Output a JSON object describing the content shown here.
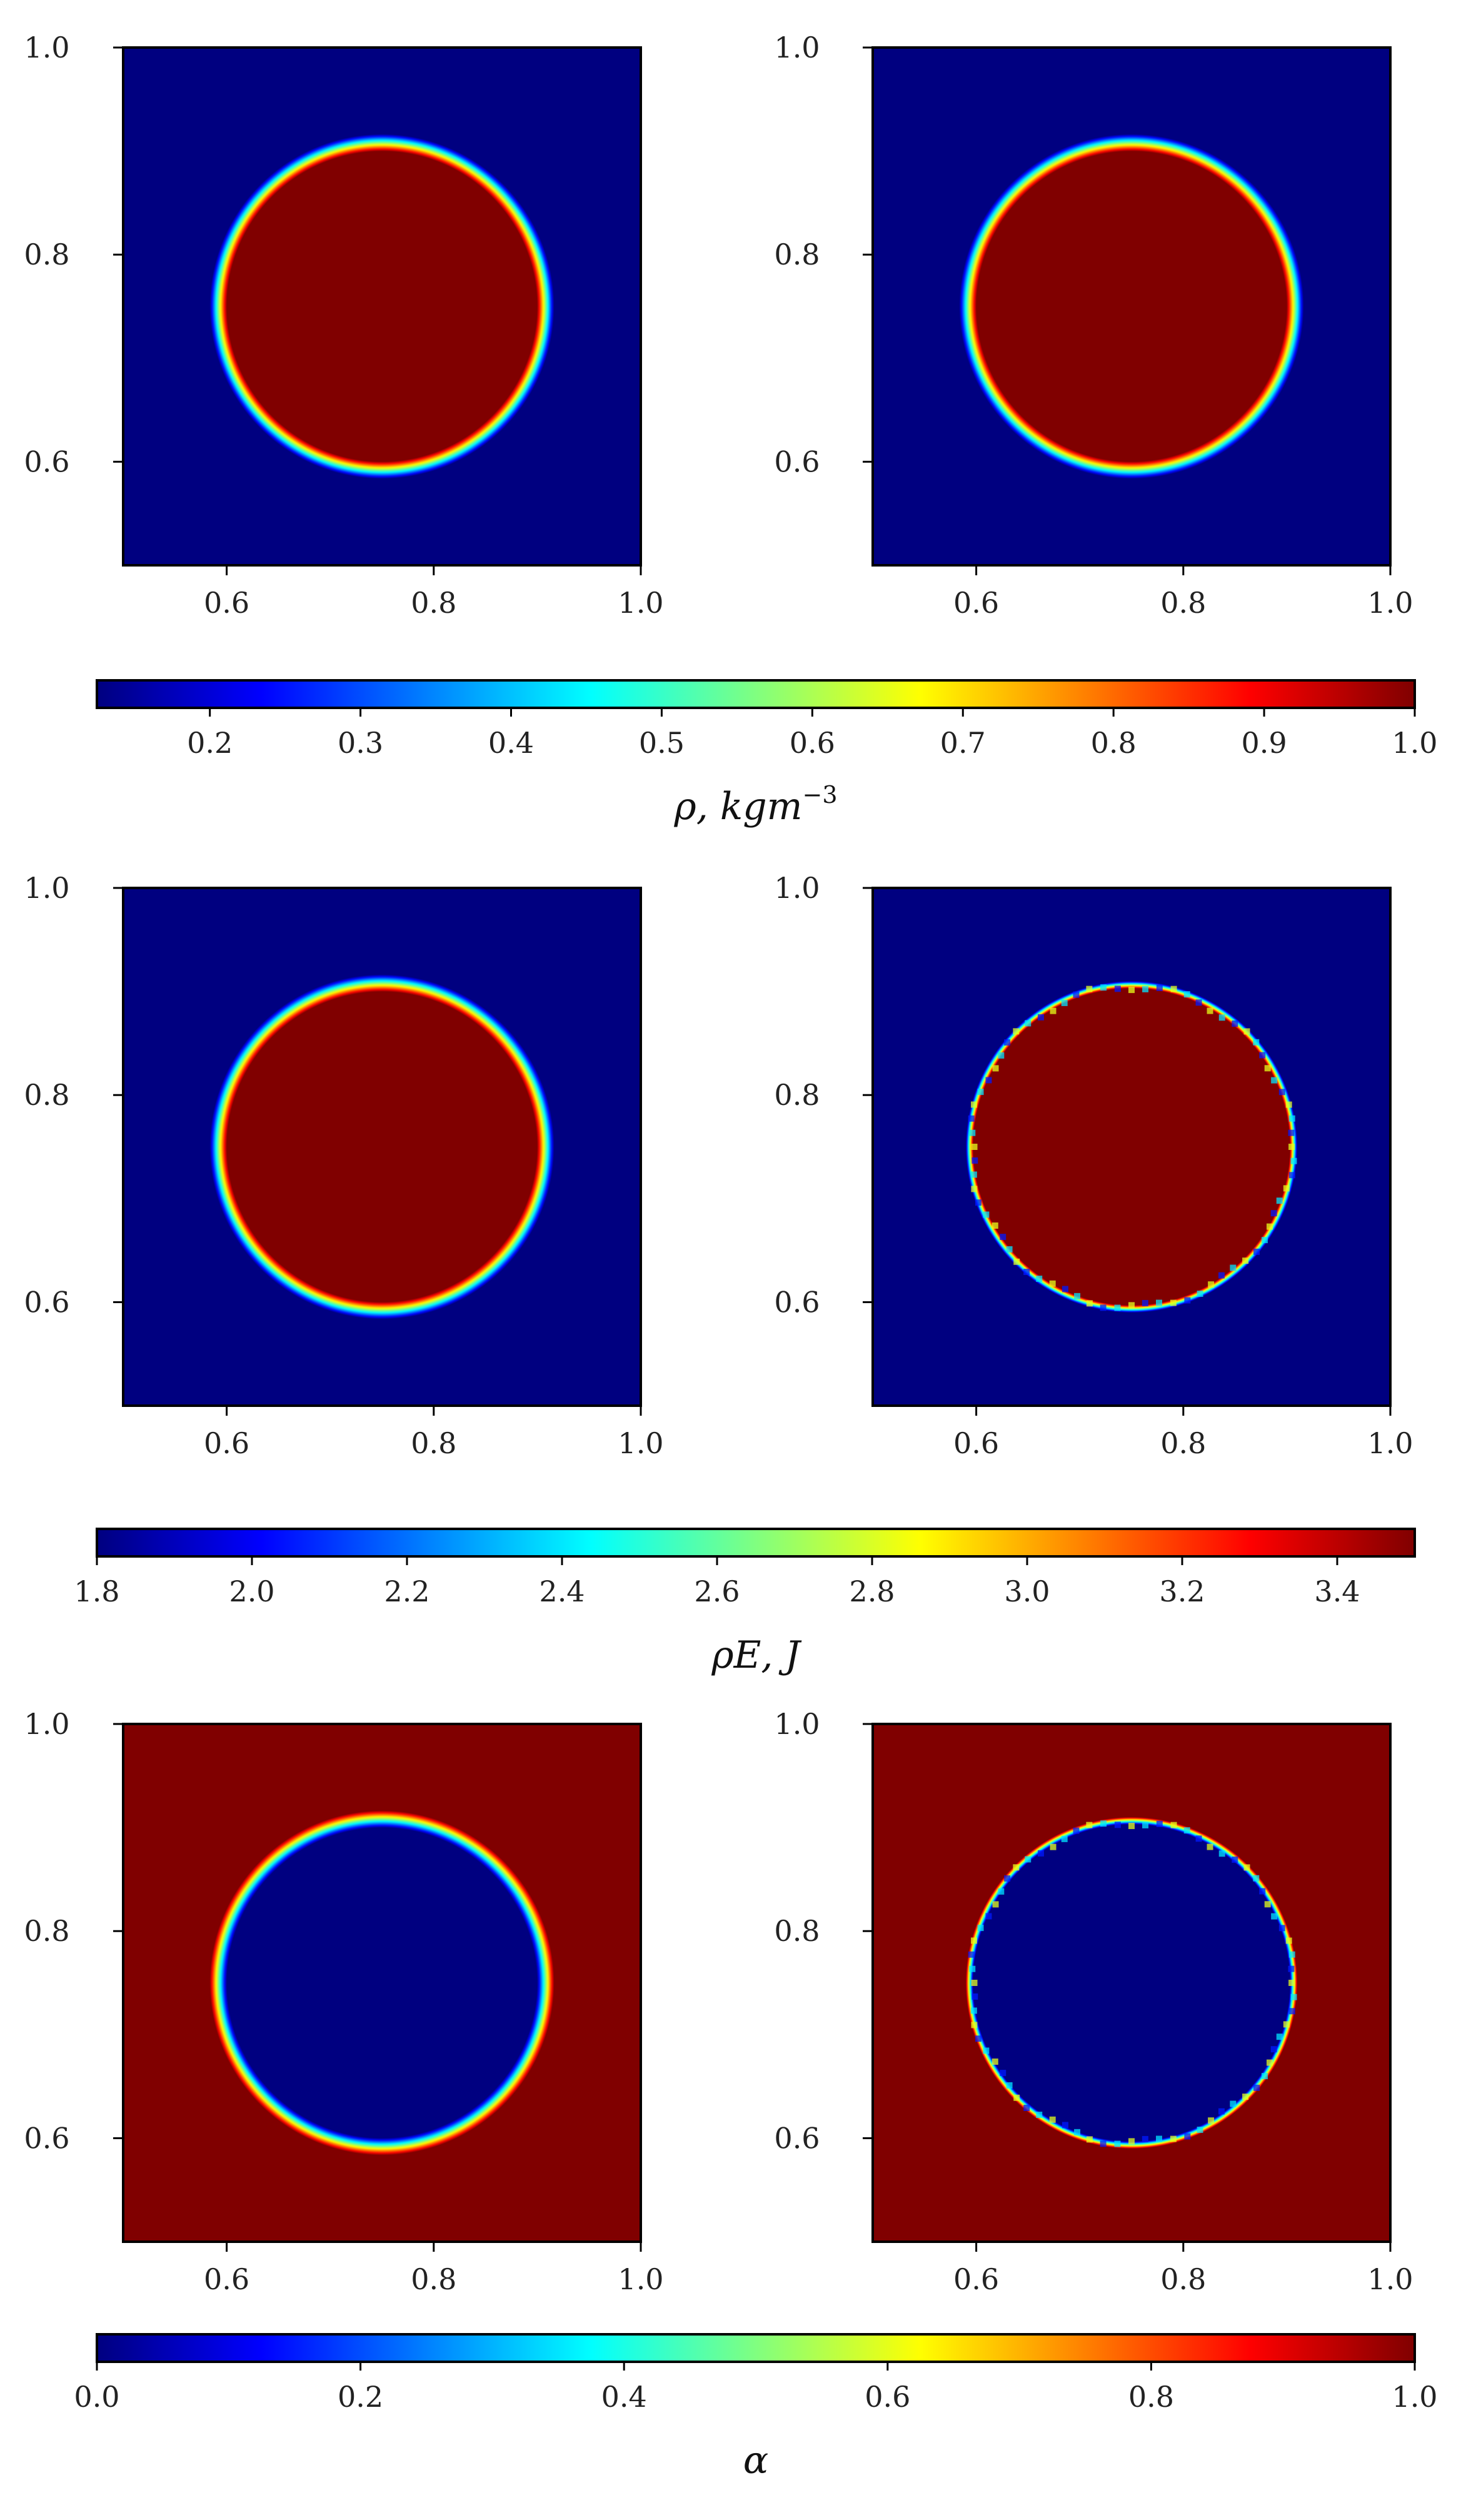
{
  "chart_data": [
    {
      "type": "heatmap",
      "name": "density-left",
      "row": 0,
      "col": 0,
      "field": "rho",
      "xlim": [
        0.5,
        1.0
      ],
      "ylim": [
        0.5,
        1.0
      ],
      "xticks": [
        "0.6",
        "0.8",
        "1.0"
      ],
      "yticks": [
        "1.0",
        "0.8",
        "0.6"
      ],
      "circle": {
        "cx": 0.75,
        "cy": 0.75,
        "r": 0.157
      },
      "inside_value": 1.0,
      "outside_value": 0.125,
      "interface": "smooth"
    },
    {
      "type": "heatmap",
      "name": "density-right",
      "row": 0,
      "col": 1,
      "field": "rho",
      "xlim": [
        0.5,
        1.0
      ],
      "ylim": [
        0.5,
        1.0
      ],
      "xticks": [
        "0.6",
        "0.8",
        "1.0"
      ],
      "yticks": [
        "1.0",
        "0.8",
        "0.6"
      ],
      "circle": {
        "cx": 0.75,
        "cy": 0.75,
        "r": 0.157
      },
      "inside_value": 1.0,
      "outside_value": 0.125,
      "interface": "smooth"
    },
    {
      "type": "heatmap",
      "name": "energy-left",
      "row": 1,
      "col": 0,
      "field": "rhoE",
      "xlim": [
        0.5,
        1.0
      ],
      "ylim": [
        0.5,
        1.0
      ],
      "xticks": [
        "0.6",
        "0.8",
        "1.0"
      ],
      "yticks": [
        "1.0",
        "0.8",
        "0.6"
      ],
      "circle": {
        "cx": 0.75,
        "cy": 0.75,
        "r": 0.157
      },
      "inside_value": 3.5,
      "outside_value": 1.8,
      "interface": "smooth"
    },
    {
      "type": "heatmap",
      "name": "energy-right",
      "row": 1,
      "col": 1,
      "field": "rhoE",
      "xlim": [
        0.5,
        1.0
      ],
      "ylim": [
        0.5,
        1.0
      ],
      "xticks": [
        "0.6",
        "0.8",
        "1.0"
      ],
      "yticks": [
        "1.0",
        "0.8",
        "0.6"
      ],
      "circle": {
        "cx": 0.75,
        "cy": 0.75,
        "r": 0.157
      },
      "inside_value": 3.5,
      "outside_value": 1.8,
      "interface": "sharp"
    },
    {
      "type": "heatmap",
      "name": "alpha-left",
      "row": 2,
      "col": 0,
      "field": "alpha",
      "xlim": [
        0.5,
        1.0
      ],
      "ylim": [
        0.5,
        1.0
      ],
      "xticks": [
        "0.6",
        "0.8",
        "1.0"
      ],
      "yticks": [
        "1.0",
        "0.8",
        "0.6"
      ],
      "circle": {
        "cx": 0.75,
        "cy": 0.75,
        "r": 0.157
      },
      "inside_value": 0.0,
      "outside_value": 1.0,
      "interface": "smooth"
    },
    {
      "type": "heatmap",
      "name": "alpha-right",
      "row": 2,
      "col": 1,
      "field": "alpha",
      "xlim": [
        0.5,
        1.0
      ],
      "ylim": [
        0.5,
        1.0
      ],
      "xticks": [
        "0.6",
        "0.8",
        "1.0"
      ],
      "yticks": [
        "1.0",
        "0.8",
        "0.6"
      ],
      "circle": {
        "cx": 0.75,
        "cy": 0.75,
        "r": 0.157
      },
      "inside_value": 0.0,
      "outside_value": 1.0,
      "interface": "sharp"
    }
  ],
  "colorbars": [
    {
      "field": "rho",
      "colormap": "jet",
      "range": [
        0.125,
        1.0
      ],
      "ticks": [
        "0.2",
        "0.3",
        "0.4",
        "0.5",
        "0.6",
        "0.7",
        "0.8",
        "0.9",
        "1.0"
      ],
      "tick_values": [
        0.2,
        0.3,
        0.4,
        0.5,
        0.6,
        0.7,
        0.8,
        0.9,
        1.0
      ],
      "label_main": "ρ, kgm",
      "label_sup": "−3"
    },
    {
      "field": "rhoE",
      "colormap": "jet",
      "range": [
        1.8,
        3.5
      ],
      "ticks": [
        "1.8",
        "2.0",
        "2.2",
        "2.4",
        "2.6",
        "2.8",
        "3.0",
        "3.2",
        "3.4"
      ],
      "tick_values": [
        1.8,
        2.0,
        2.2,
        2.4,
        2.6,
        2.8,
        3.0,
        3.2,
        3.4
      ],
      "label_main": "ρE, J",
      "label_sup": ""
    },
    {
      "field": "alpha",
      "colormap": "jet",
      "range": [
        0.0,
        1.0
      ],
      "ticks": [
        "0.0",
        "0.2",
        "0.4",
        "0.6",
        "0.8",
        "1.0"
      ],
      "tick_values": [
        0.0,
        0.2,
        0.4,
        0.6,
        0.8,
        1.0
      ],
      "label_main": "α",
      "label_sup": ""
    }
  ]
}
